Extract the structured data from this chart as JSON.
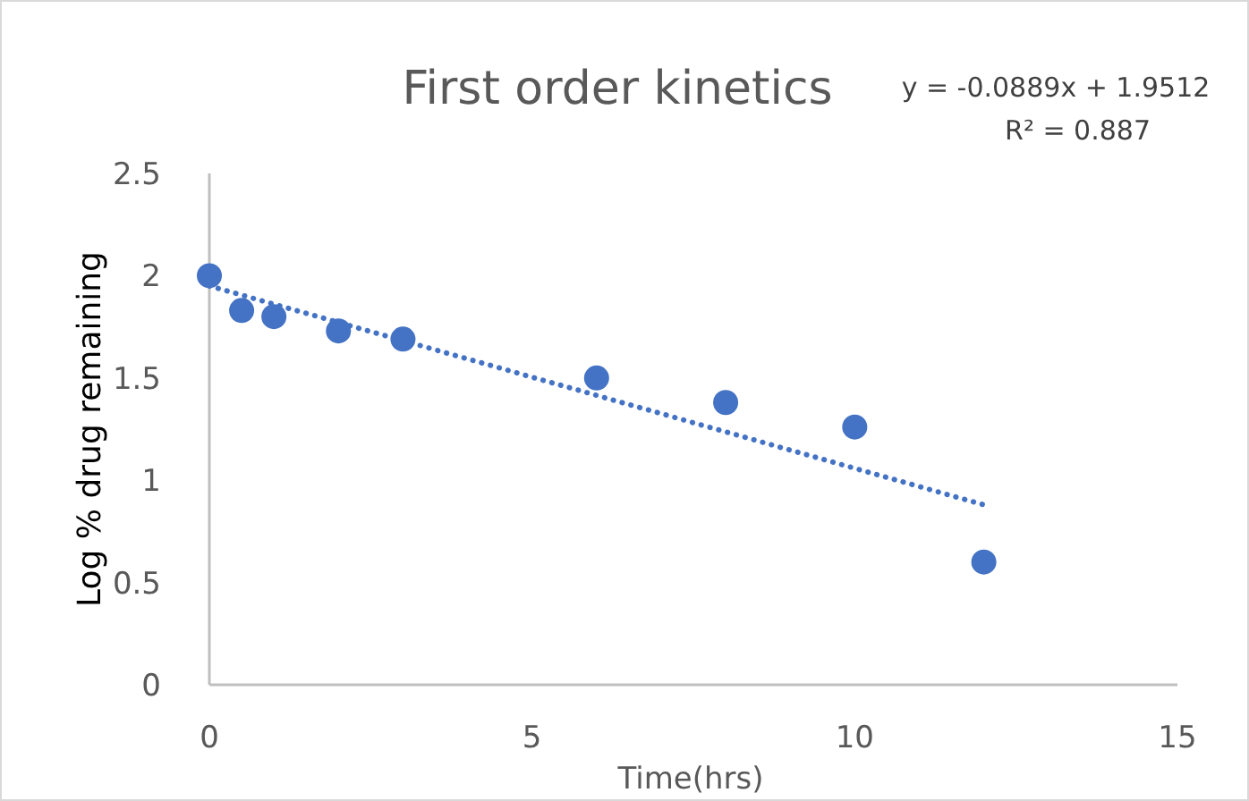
{
  "chart_data": {
    "type": "scatter",
    "title": "First order kinetics",
    "xlabel": "Time(hrs)",
    "ylabel": "Log % drug remaining",
    "annotations": [
      "y = -0.0889x + 1.9512",
      "R² = 0.887"
    ],
    "xlim": [
      0,
      15
    ],
    "xticks": [
      0,
      5,
      10,
      15
    ],
    "ylim": [
      0,
      2.5
    ],
    "yticks": [
      0,
      0.5,
      1,
      1.5,
      2,
      2.5
    ],
    "grid": false,
    "series": [
      {
        "type": "scatter",
        "color": "#4472c4",
        "marker": "circle",
        "x": [
          0,
          0.5,
          1,
          2,
          3,
          6,
          8,
          10,
          12
        ],
        "values": [
          2.0,
          1.83,
          1.8,
          1.73,
          1.69,
          1.5,
          1.38,
          1.26,
          0.6
        ]
      },
      {
        "type": "line",
        "color": "#4472c4",
        "marker": "none",
        "line_style": "dotted",
        "x": [
          0,
          12
        ],
        "values": [
          1.95,
          0.88
        ]
      }
    ]
  }
}
